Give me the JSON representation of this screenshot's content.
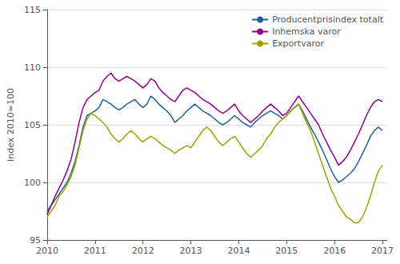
{
  "chart_data": {
    "type": "line",
    "ylabel": "Index 2010=100",
    "x": [
      2010.0,
      2010.0833333333333,
      2010.1666666666667,
      2010.25,
      2010.3333333333333,
      2010.4166666666667,
      2010.5,
      2010.5833333333333,
      2010.6666666666667,
      2010.75,
      2010.8333333333333,
      2010.9166666666667,
      2011.0,
      2011.0833333333333,
      2011.1666666666667,
      2011.25,
      2011.3333333333333,
      2011.4166666666667,
      2011.5,
      2011.5833333333333,
      2011.6666666666667,
      2011.75,
      2011.8333333333333,
      2011.9166666666667,
      2012.0,
      2012.0833333333333,
      2012.1666666666667,
      2012.25,
      2012.3333333333333,
      2012.4166666666667,
      2012.5,
      2012.5833333333333,
      2012.6666666666667,
      2012.75,
      2012.8333333333333,
      2012.9166666666667,
      2013.0,
      2013.0833333333333,
      2013.1666666666667,
      2013.25,
      2013.3333333333333,
      2013.4166666666667,
      2013.5,
      2013.5833333333333,
      2013.6666666666667,
      2013.75,
      2013.8333333333333,
      2013.9166666666667,
      2014.0,
      2014.0833333333333,
      2014.1666666666667,
      2014.25,
      2014.3333333333333,
      2014.4166666666667,
      2014.5,
      2014.5833333333333,
      2014.6666666666667,
      2014.75,
      2014.8333333333333,
      2014.9166666666667,
      2015.0,
      2015.0833333333333,
      2015.1666666666667,
      2015.25,
      2015.3333333333333,
      2015.4166666666667,
      2015.5,
      2015.5833333333333,
      2015.6666666666667,
      2015.75,
      2015.8333333333333,
      2015.9166666666667,
      2016.0,
      2016.0833333333333,
      2016.1666666666667,
      2016.25,
      2016.3333333333333,
      2016.4166666666667,
      2016.5,
      2016.5833333333333,
      2016.6666666666667,
      2016.75,
      2016.8333333333333,
      2016.9166666666667,
      2017.0
    ],
    "xlim": [
      2010.0,
      2017.1
    ],
    "xticks": [
      2010,
      2011,
      2012,
      2013,
      2014,
      2015,
      2016,
      2017
    ],
    "ylim": [
      95,
      115
    ],
    "yticks": [
      95,
      100,
      105,
      110,
      115
    ],
    "grid": true,
    "legend": "upper right",
    "series": [
      {
        "name": "Producentprisindex totalt",
        "color": "#2060a0",
        "values": [
          97.5,
          98.0,
          98.5,
          99.0,
          99.5,
          100.0,
          100.8,
          101.8,
          103.2,
          104.8,
          105.8,
          106.0,
          106.2,
          106.5,
          107.2,
          107.0,
          106.8,
          106.5,
          106.3,
          106.5,
          106.8,
          107.0,
          107.2,
          106.8,
          106.5,
          106.8,
          107.5,
          107.2,
          106.8,
          106.5,
          106.2,
          105.8,
          105.2,
          105.5,
          105.8,
          106.2,
          106.5,
          106.8,
          106.5,
          106.2,
          106.0,
          105.8,
          105.5,
          105.2,
          105.0,
          105.2,
          105.5,
          105.8,
          105.5,
          105.2,
          105.0,
          104.8,
          105.2,
          105.5,
          105.8,
          106.0,
          106.2,
          106.0,
          105.8,
          105.5,
          105.8,
          106.2,
          106.5,
          106.8,
          106.2,
          105.5,
          104.8,
          104.2,
          103.5,
          102.8,
          102.0,
          101.2,
          100.5,
          100.0,
          100.2,
          100.5,
          100.8,
          101.2,
          101.8,
          102.5,
          103.2,
          104.0,
          104.5,
          104.8,
          104.5
        ]
      },
      {
        "name": "Inhemska varor",
        "color": "#900090",
        "values": [
          97.2,
          98.0,
          98.8,
          99.5,
          100.2,
          101.0,
          102.0,
          103.5,
          105.2,
          106.5,
          107.2,
          107.5,
          107.8,
          108.0,
          108.8,
          109.2,
          109.5,
          109.0,
          108.8,
          109.0,
          109.2,
          109.0,
          108.8,
          108.5,
          108.2,
          108.5,
          109.0,
          108.8,
          108.2,
          107.8,
          107.5,
          107.2,
          107.0,
          107.5,
          108.0,
          108.2,
          108.0,
          107.8,
          107.5,
          107.2,
          107.0,
          106.8,
          106.5,
          106.2,
          106.0,
          106.2,
          106.5,
          106.8,
          106.2,
          105.8,
          105.5,
          105.2,
          105.5,
          105.8,
          106.2,
          106.5,
          106.8,
          106.5,
          106.2,
          105.8,
          106.0,
          106.5,
          107.0,
          107.5,
          107.0,
          106.5,
          106.0,
          105.5,
          105.0,
          104.2,
          103.5,
          102.8,
          102.2,
          101.5,
          101.8,
          102.2,
          102.8,
          103.5,
          104.2,
          105.0,
          105.8,
          106.5,
          107.0,
          107.2,
          107.0
        ]
      },
      {
        "name": "Exportvaror",
        "color": "#a0a000",
        "values": [
          97.0,
          97.5,
          98.0,
          98.8,
          99.2,
          99.8,
          100.5,
          101.5,
          103.0,
          104.5,
          105.5,
          106.0,
          105.8,
          105.5,
          105.2,
          104.8,
          104.2,
          103.8,
          103.5,
          103.8,
          104.2,
          104.5,
          104.2,
          103.8,
          103.5,
          103.8,
          104.0,
          103.8,
          103.5,
          103.2,
          103.0,
          102.8,
          102.5,
          102.8,
          103.0,
          103.2,
          103.0,
          103.5,
          104.0,
          104.5,
          104.8,
          104.5,
          104.0,
          103.5,
          103.2,
          103.5,
          103.8,
          104.0,
          103.5,
          103.0,
          102.5,
          102.2,
          102.5,
          102.8,
          103.2,
          103.8,
          104.2,
          104.8,
          105.2,
          105.5,
          105.8,
          106.2,
          106.5,
          106.8,
          106.0,
          105.2,
          104.5,
          103.5,
          102.5,
          101.5,
          100.5,
          99.5,
          98.8,
          98.0,
          97.5,
          97.0,
          96.8,
          96.5,
          96.5,
          97.0,
          97.8,
          98.8,
          100.0,
          101.0,
          101.5
        ]
      }
    ]
  }
}
